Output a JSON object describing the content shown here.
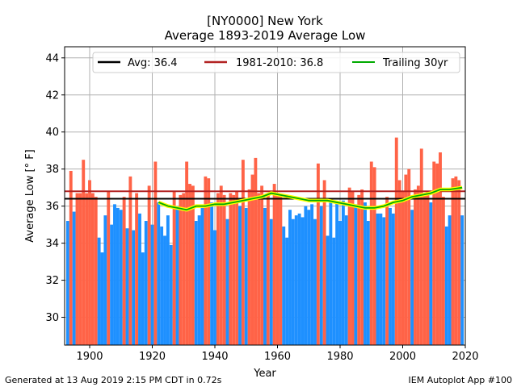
{
  "chart_data": {
    "type": "bar",
    "title": "[NY0000] New York",
    "subtitle": "Average 1893-2019 Average Low",
    "xlabel": "Year",
    "ylabel": "Average Low [° F]",
    "xlim": [
      1892,
      2020
    ],
    "ylim": [
      28.5,
      44.6
    ],
    "x_ticks": [
      1900,
      1920,
      1940,
      1960,
      1980,
      2000,
      2020
    ],
    "y_ticks": [
      30,
      32,
      34,
      36,
      38,
      40,
      42,
      44
    ],
    "grid": true,
    "legend_position": "top",
    "colors": {
      "above_average": "#ff6347",
      "below_average": "#1e90ff",
      "average_line": "#000000",
      "climatology_line": "#b22222",
      "trailing_line": "#00aa00",
      "trailing_halo": "#ffff00",
      "grid": "#b0b0b0"
    },
    "years": [
      1893,
      1894,
      1895,
      1896,
      1897,
      1898,
      1899,
      1900,
      1901,
      1902,
      1903,
      1904,
      1905,
      1906,
      1907,
      1908,
      1909,
      1910,
      1911,
      1912,
      1913,
      1914,
      1915,
      1916,
      1917,
      1918,
      1919,
      1920,
      1921,
      1922,
      1923,
      1924,
      1925,
      1926,
      1927,
      1928,
      1929,
      1930,
      1931,
      1932,
      1933,
      1934,
      1935,
      1936,
      1937,
      1938,
      1939,
      1940,
      1941,
      1942,
      1943,
      1944,
      1945,
      1946,
      1947,
      1948,
      1949,
      1950,
      1951,
      1952,
      1953,
      1954,
      1955,
      1956,
      1957,
      1958,
      1959,
      1960,
      1961,
      1962,
      1963,
      1964,
      1965,
      1966,
      1967,
      1968,
      1969,
      1970,
      1971,
      1972,
      1973,
      1974,
      1975,
      1976,
      1977,
      1978,
      1979,
      1980,
      1981,
      1982,
      1983,
      1984,
      1985,
      1986,
      1987,
      1988,
      1989,
      1990,
      1991,
      1992,
      1993,
      1994,
      1995,
      1996,
      1997,
      1998,
      1999,
      2000,
      2001,
      2002,
      2003,
      2004,
      2005,
      2006,
      2007,
      2008,
      2009,
      2010,
      2011,
      2012,
      2013,
      2014,
      2015,
      2016,
      2017,
      2018,
      2019
    ],
    "values": [
      35.2,
      37.9,
      35.7,
      36.7,
      36.7,
      38.5,
      36.7,
      37.4,
      36.7,
      36.5,
      34.3,
      33.5,
      35.5,
      36.8,
      35.0,
      36.1,
      35.9,
      35.8,
      36.5,
      34.8,
      37.6,
      34.7,
      36.7,
      35.6,
      33.5,
      35.2,
      37.1,
      35.0,
      38.4,
      36.2,
      34.9,
      34.4,
      35.5,
      33.9,
      36.8,
      36.0,
      36.6,
      36.7,
      38.4,
      37.2,
      37.1,
      35.2,
      35.5,
      35.9,
      37.6,
      37.5,
      36.2,
      34.7,
      36.7,
      37.1,
      36.6,
      35.3,
      36.7,
      36.6,
      36.8,
      36.0,
      38.5,
      35.9,
      36.9,
      37.7,
      38.6,
      36.7,
      37.1,
      35.9,
      36.6,
      35.3,
      37.2,
      36.6,
      36.6,
      34.9,
      34.3,
      35.8,
      35.3,
      35.5,
      35.6,
      35.4,
      36.0,
      35.8,
      36.1,
      35.3,
      38.3,
      36.0,
      37.4,
      34.4,
      36.2,
      34.3,
      36.2,
      35.2,
      36.3,
      35.5,
      37.0,
      36.8,
      36.1,
      36.6,
      36.9,
      36.2,
      35.2,
      38.4,
      38.1,
      35.6,
      35.6,
      35.4,
      36.5,
      35.9,
      35.6,
      39.7,
      37.4,
      36.8,
      37.7,
      38.0,
      35.8,
      36.9,
      37.1,
      39.1,
      36.6,
      36.8,
      36.2,
      38.4,
      38.3,
      38.9,
      36.5,
      34.9,
      35.5,
      37.5,
      37.6,
      37.4,
      35.5
    ],
    "average": 36.4,
    "climatology": 36.8,
    "trailing_30yr": {
      "x": [
        1922,
        1925,
        1928,
        1931,
        1934,
        1937,
        1940,
        1943,
        1946,
        1949,
        1952,
        1955,
        1958,
        1961,
        1964,
        1967,
        1970,
        1973,
        1976,
        1979,
        1982,
        1985,
        1988,
        1991,
        1994,
        1997,
        2000,
        2003,
        2006,
        2009,
        2012,
        2015,
        2019
      ],
      "values": [
        36.2,
        36.0,
        35.9,
        35.8,
        36.0,
        36.0,
        36.1,
        36.1,
        36.2,
        36.3,
        36.4,
        36.5,
        36.7,
        36.6,
        36.5,
        36.4,
        36.3,
        36.3,
        36.3,
        36.2,
        36.1,
        36.0,
        35.9,
        35.9,
        36.0,
        36.2,
        36.3,
        36.5,
        36.6,
        36.7,
        36.9,
        36.9,
        37.0
      ]
    },
    "legend": [
      {
        "key": "average",
        "label": "Avg: 36.4"
      },
      {
        "key": "climatology",
        "label": "1981-2010: 36.8"
      },
      {
        "key": "trailing",
        "label": "Trailing 30yr"
      }
    ]
  },
  "footer": {
    "left": "Generated at 13 Aug 2019 2:15 PM CDT in 0.72s",
    "right": "IEM Autoplot App #100"
  }
}
